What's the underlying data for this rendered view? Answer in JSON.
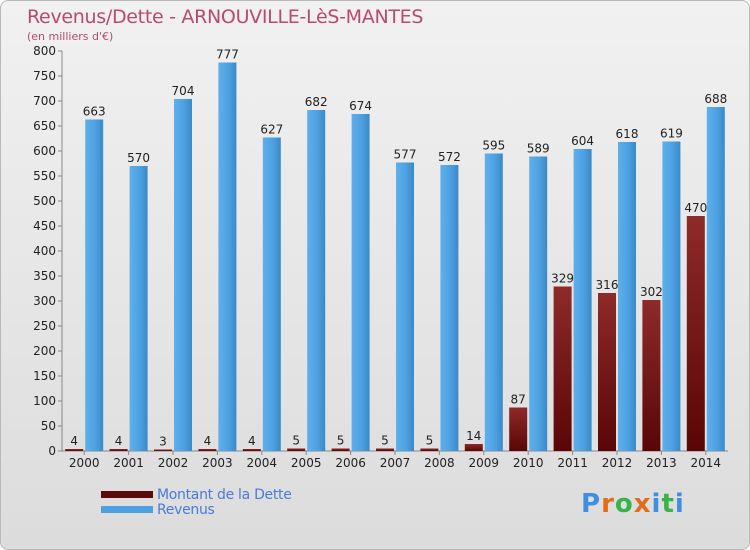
{
  "title": "Revenus/Dette - ARNOUVILLE-LèS-MANTES",
  "subtitle": "(en milliers d'€)",
  "logo_text": "Proxiti",
  "colors": {
    "dette": "#7a1818",
    "revenus": "#4ea1e0",
    "title": "#b84a6e",
    "legend_text": "#4a7bd9",
    "logo": [
      "#3f8fe0",
      "#e36c1a",
      "#3ab24a",
      "#e36c1a",
      "#3f8fe0",
      "#3ab24a",
      "#3f8fe0"
    ]
  },
  "legend": [
    {
      "name": "Montant de la Dette",
      "color": "#6a1010"
    },
    {
      "name": "Revenus",
      "color": "#4ea1e0"
    }
  ],
  "chart_data": {
    "type": "bar",
    "categories": [
      "2000",
      "2001",
      "2002",
      "2003",
      "2004",
      "2005",
      "2006",
      "2007",
      "2008",
      "2009",
      "2010",
      "2011",
      "2012",
      "2013",
      "2014"
    ],
    "series": [
      {
        "name": "Montant de la Dette",
        "values": [
          4,
          4,
          3,
          4,
          4,
          5,
          5,
          5,
          5,
          14,
          87,
          329,
          316,
          302,
          470
        ]
      },
      {
        "name": "Revenus",
        "values": [
          663,
          570,
          704,
          777,
          627,
          682,
          674,
          577,
          572,
          595,
          589,
          604,
          618,
          619,
          688
        ]
      }
    ],
    "ylim": [
      0,
      800
    ],
    "yticks": [
      0,
      50,
      100,
      150,
      200,
      250,
      300,
      350,
      400,
      450,
      500,
      550,
      600,
      650,
      700,
      750,
      800
    ],
    "grid": false,
    "legend_position": "bottom-left"
  }
}
